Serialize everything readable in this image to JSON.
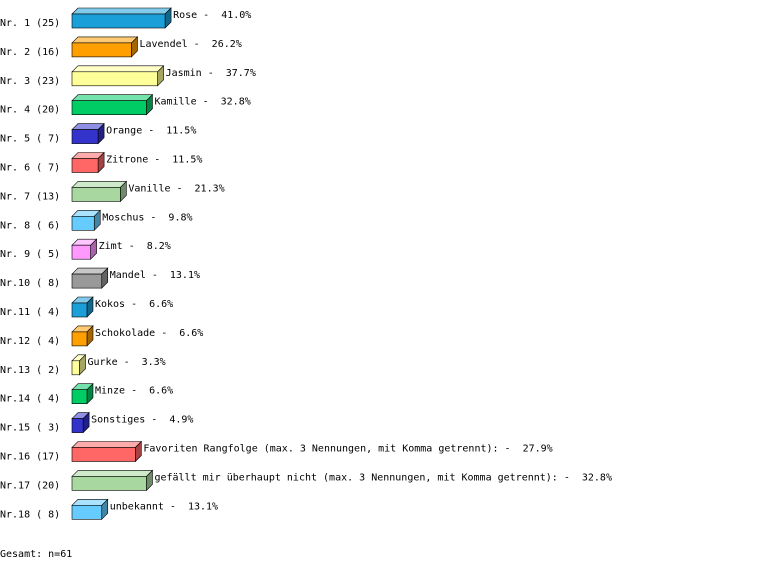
{
  "chart_data": {
    "type": "bar3d",
    "categories": [
      "Nr. 1 (25)",
      "Nr. 2 (16)",
      "Nr. 3 (23)",
      "Nr. 4 (20)",
      "Nr. 5 ( 7)",
      "Nr. 6 ( 7)",
      "Nr. 7 (13)",
      "Nr. 8 ( 6)",
      "Nr. 9 ( 5)",
      "Nr.10 ( 8)",
      "Nr.11 ( 4)",
      "Nr.12 ( 4)",
      "Nr.13 ( 2)",
      "Nr.14 ( 4)",
      "Nr.15 ( 3)",
      "Nr.16 (17)",
      "Nr.17 (20)",
      "Nr.18 ( 8)"
    ],
    "names": [
      "Rose",
      "Lavendel",
      "Jasmin",
      "Kamille",
      "Orange",
      "Zitrone",
      "Vanille",
      "Moschus",
      "Zimt",
      "Mandel",
      "Kokos",
      "Schokolade",
      "Gurke",
      "Minze",
      "Sonstiges",
      "Favoriten Rangfolge (max. 3 Nennungen, mit Komma getrennt):",
      "gefällt mir überhaupt nicht (max. 3 Nennungen, mit Komma getrennt):",
      "unbekannt"
    ],
    "separator": "-",
    "values": [
      41.0,
      26.2,
      37.7,
      32.8,
      11.5,
      11.5,
      21.3,
      9.8,
      8.2,
      13.1,
      6.6,
      6.6,
      3.3,
      6.6,
      4.9,
      27.9,
      32.8,
      13.1
    ],
    "value_labels": [
      "41.0%",
      "26.2%",
      "37.7%",
      "32.8%",
      "11.5%",
      "11.5%",
      "21.3%",
      "9.8%",
      "8.2%",
      "13.1%",
      "6.6%",
      "6.6%",
      "3.3%",
      "6.6%",
      "4.9%",
      "27.9%",
      "32.8%",
      "13.1%"
    ],
    "colors": [
      "#1a9fd8",
      "#ff9f00",
      "#ffff99",
      "#00cc66",
      "#3333cc",
      "#ff6666",
      "#a8d8a0",
      "#66ccff",
      "#ff99ff",
      "#999999",
      "#1a9fd8",
      "#ff9f00",
      "#ffff99",
      "#00cc66",
      "#3333cc",
      "#ff6666",
      "#a8d8a0",
      "#66ccff"
    ],
    "footer": "Gesamt: n=61"
  }
}
